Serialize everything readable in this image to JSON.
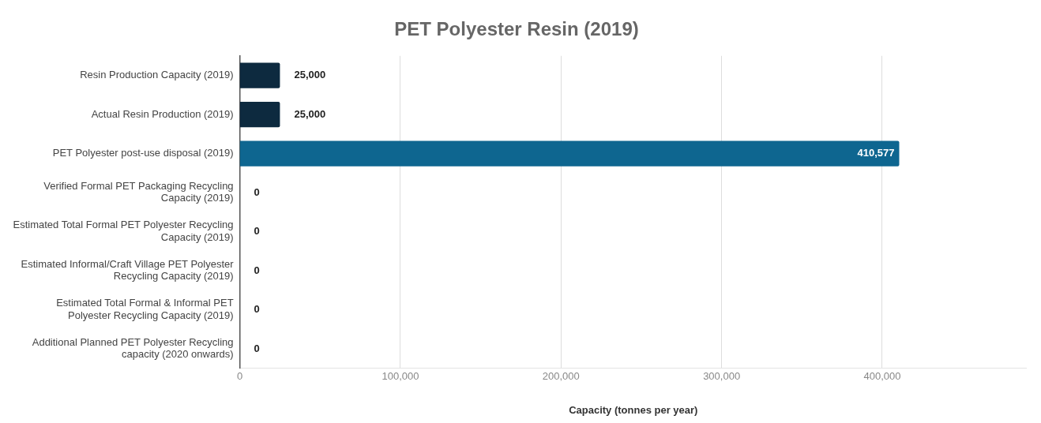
{
  "chart_data": {
    "type": "bar",
    "orientation": "horizontal",
    "title": "PET Polyester Resin (2019)",
    "xlabel": "Capacity (tonnes per year)",
    "categories": [
      "Resin Production Capacity (2019)",
      "Actual Resin Production (2019)",
      "PET Polyester post-use disposal (2019)",
      "Verified Formal PET Packaging Recycling Capacity (2019)",
      "Estimated Total Formal PET Polyester Recycling Capacity (2019)",
      "Estimated Informal/Craft Village PET Polyester Recycling Capacity (2019)",
      "Estimated Total Formal & Informal PET Polyester Recycling Capacity (2019)",
      "Additional Planned PET Polyester Recycling capacity (2020 onwards)"
    ],
    "values": [
      25000,
      25000,
      410577,
      0,
      0,
      0,
      0,
      0
    ],
    "value_labels": [
      "25,000",
      "25,000",
      "410,577",
      "0",
      "0",
      "0",
      "0",
      "0"
    ],
    "colors": [
      "#0d2a3f",
      "#0d2a3f",
      "#0e6690",
      "#0d2a3f",
      "#0d2a3f",
      "#0d2a3f",
      "#0d2a3f",
      "#0d2a3f"
    ],
    "xlim": [
      0,
      490000
    ],
    "xticks": [
      0,
      {
        "value": 100000,
        "label": "100,000"
      },
      {
        "value": 200000,
        "label": "200,000"
      },
      {
        "value": 300000,
        "label": "300,000"
      },
      {
        "value": 400000,
        "label": "400,000"
      }
    ],
    "grid": "x",
    "legend": false
  }
}
